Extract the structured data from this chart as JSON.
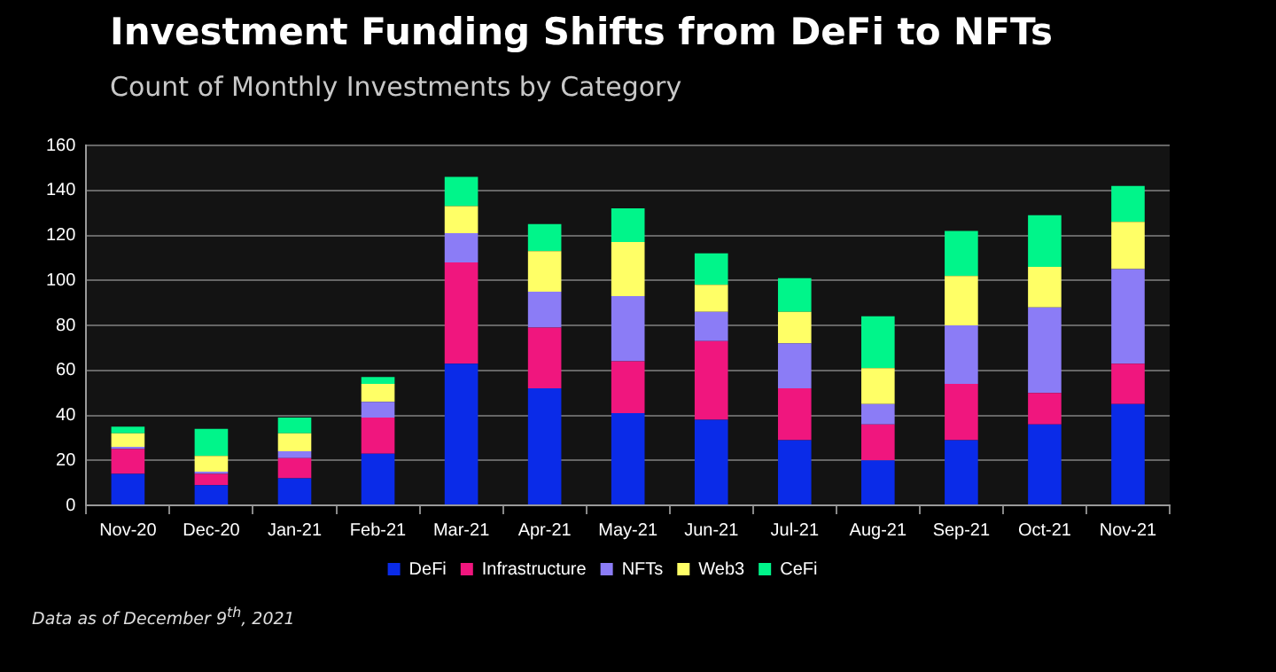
{
  "chart_data": {
    "type": "bar",
    "stacked": true,
    "title": "Investment Funding Shifts from DeFi to NFTs",
    "subtitle": "Count of Monthly Investments by Category",
    "categories": [
      "Nov-20",
      "Dec-20",
      "Jan-21",
      "Feb-21",
      "Mar-21",
      "Apr-21",
      "May-21",
      "Jun-21",
      "Jul-21",
      "Aug-21",
      "Sep-21",
      "Oct-21",
      "Nov-21"
    ],
    "series": [
      {
        "name": "DeFi",
        "color": "#0a2be8",
        "values": [
          14,
          9,
          12,
          23,
          63,
          52,
          41,
          38,
          29,
          20,
          29,
          36,
          45
        ]
      },
      {
        "name": "Infrastructure",
        "color": "#f0167e",
        "values": [
          11,
          5,
          9,
          16,
          45,
          27,
          23,
          35,
          23,
          16,
          25,
          14,
          18
        ]
      },
      {
        "name": "NFTs",
        "color": "#8b7cf6",
        "values": [
          1,
          1,
          3,
          7,
          13,
          16,
          29,
          13,
          20,
          9,
          26,
          38,
          42
        ]
      },
      {
        "name": "Web3",
        "color": "#ffff66",
        "values": [
          6,
          7,
          8,
          8,
          12,
          18,
          24,
          12,
          14,
          16,
          22,
          18,
          21
        ]
      },
      {
        "name": "CeFi",
        "color": "#00f58a",
        "values": [
          3,
          12,
          7,
          3,
          13,
          12,
          15,
          14,
          15,
          23,
          20,
          23,
          16
        ]
      }
    ],
    "ylim": [
      0,
      160
    ],
    "yticks": [
      0,
      20,
      40,
      60,
      80,
      100,
      120,
      140,
      160
    ],
    "grid": "y",
    "legend": "bottom",
    "annotations": [
      "Data as of December 9$^{th}$, 2021"
    ]
  }
}
